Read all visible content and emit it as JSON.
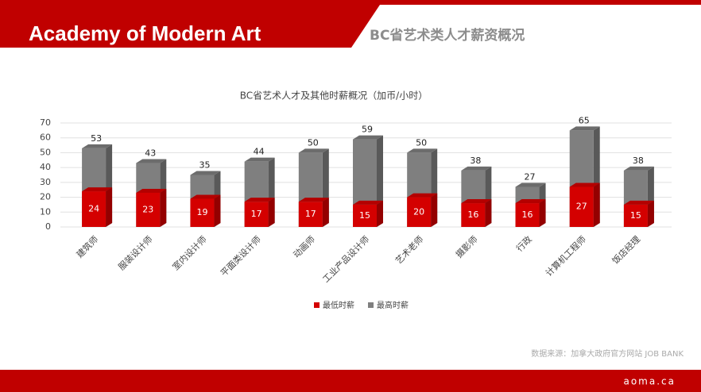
{
  "header": {
    "title": "Academy of Modern Art",
    "subtitle": "BC省艺术类人才薪资概况"
  },
  "chart_data": {
    "type": "bar",
    "title": "BC省艺术人才及其他时薪概况（加币/小时）",
    "categories": [
      "建筑师",
      "服装设计师",
      "室内设计师",
      "平面类设计师",
      "动画师",
      "工业产品设计师",
      "艺术老师",
      "摄影师",
      "行政",
      "计算机工程师",
      "饭店经理"
    ],
    "series": [
      {
        "name": "最低时薪",
        "color": "#d40000",
        "values": [
          24,
          23,
          19,
          17,
          17,
          15,
          20,
          16,
          16,
          27,
          15
        ]
      },
      {
        "name": "最高时薪",
        "color": "#7f7f7f",
        "values": [
          53,
          43,
          35,
          44,
          50,
          59,
          50,
          38,
          27,
          65,
          38
        ]
      }
    ],
    "ylim": [
      0,
      70
    ],
    "yticks": [
      0,
      10,
      20,
      30,
      40,
      50,
      60,
      70
    ],
    "grid": true,
    "legend": "bottom"
  },
  "source": "数据来源：加拿大政府官方网站 JOB BANK",
  "footer": "aoma.ca"
}
